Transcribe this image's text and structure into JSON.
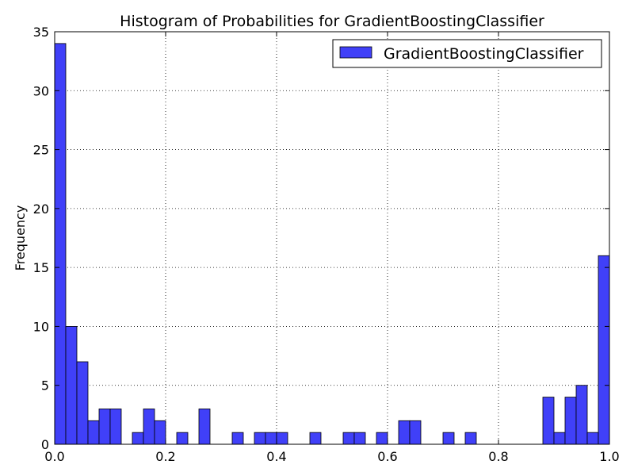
{
  "chart_data": {
    "type": "bar",
    "title": "Histogram of Probabilities for GradientBoostingClassifier",
    "xlabel": "",
    "ylabel": "Frequency",
    "xlim": [
      0.0,
      1.0
    ],
    "ylim": [
      0,
      35
    ],
    "grid": true,
    "legend_position": "top-right",
    "bar_color": "#4040f8",
    "x_ticks": [
      "0.0",
      "0.2",
      "0.4",
      "0.6",
      "0.8",
      "1.0"
    ],
    "y_ticks": [
      "0",
      "5",
      "10",
      "15",
      "20",
      "25",
      "30",
      "35"
    ],
    "series": [
      {
        "name": "GradientBoostingClassifier",
        "bin_edges_start": 0.0,
        "bin_width": 0.02,
        "values": [
          34,
          10,
          7,
          2,
          3,
          3,
          0,
          1,
          3,
          2,
          0,
          1,
          0,
          3,
          0,
          0,
          1,
          0,
          1,
          1,
          1,
          0,
          0,
          1,
          0,
          0,
          1,
          1,
          0,
          1,
          0,
          2,
          2,
          0,
          0,
          1,
          0,
          1,
          0,
          0,
          0,
          0,
          0,
          0,
          4,
          1,
          4,
          5,
          1,
          16
        ]
      }
    ]
  }
}
